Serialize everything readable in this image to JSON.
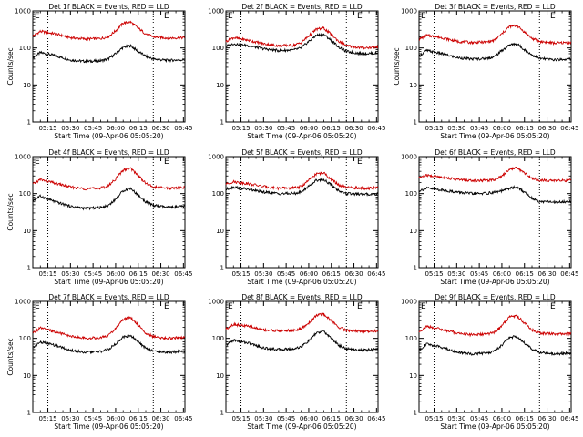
{
  "figure": {
    "panels": [
      {
        "title": "Det 1f BLACK = Events, RED = LLD",
        "corner_label_left": "E",
        "corner_label_right": "E",
        "xlabel": "Start Time (09-Apr-06 05:05:20)",
        "ylabel": "Counts/sec"
      },
      {
        "title": "Det 2f BLACK = Events, RED = LLD",
        "corner_label_left": "E",
        "corner_label_right": "E",
        "xlabel": "Start Time (09-Apr-06 05:05:20)",
        "ylabel": ""
      },
      {
        "title": "Det 3f BLACK = Events, RED = LLD",
        "corner_label_left": "E",
        "corner_label_right": "E",
        "xlabel": "Start Time (09-Apr-06 05:05:20)",
        "ylabel": "Counts/sec"
      },
      {
        "title": "Det 4f BLACK = Events, RED = LLD",
        "corner_label_left": "E",
        "corner_label_right": "E",
        "xlabel": "Start Time (09-Apr-06 05:05:20)",
        "ylabel": "Counts/sec"
      },
      {
        "title": "Det 5f BLACK = Events, RED = LLD",
        "corner_label_left": "",
        "corner_label_right": "E",
        "xlabel": "Start Time (09-Apr-06 05:05:20)",
        "ylabel": ""
      },
      {
        "title": "Det 6f BLACK = Events, RED = LLD",
        "corner_label_left": "",
        "corner_label_right": "",
        "xlabel": "Start Time (09-Apr-06 05:05:20)",
        "ylabel": ""
      },
      {
        "title": "Det 7f BLACK = Events, RED = LLD",
        "corner_label_left": "E",
        "corner_label_right": "E",
        "xlabel": "Start Time (09-Apr-06 05:05:20)",
        "ylabel": "Counts/sec"
      },
      {
        "title": "Det 8f BLACK = Events, RED = LLD",
        "corner_label_left": "E",
        "corner_label_right": "E",
        "xlabel": "Start Time (09-Apr-06 05:05:20)",
        "ylabel": ""
      },
      {
        "title": "Det 9f BLACK = Events, RED = LLD",
        "corner_label_left": "E",
        "corner_label_right": "E",
        "xlabel": "Start Time (09-Apr-06 05:05:20)",
        "ylabel": ""
      }
    ]
  },
  "chart_data": [
    {
      "type": "line",
      "title": "Det 1f BLACK = Events, RED = LLD",
      "xlabel": "Start Time (09-Apr-06 05:05:20)",
      "ylabel": "Counts/sec",
      "y_scale": "log",
      "ylim": [
        1,
        1000
      ],
      "y_ticks": [
        "1",
        "10",
        "100",
        "1000"
      ],
      "x_ticks": [
        "05:15",
        "05:30",
        "05:45",
        "06:00",
        "06:15",
        "06:30",
        "06:45"
      ],
      "xlim": [
        "05:05",
        "06:46"
      ],
      "vlines": [
        "05:15",
        "06:25"
      ],
      "series": [
        {
          "color": "#000000",
          "x": [
            "05:05",
            "05:10",
            "05:20",
            "05:30",
            "05:40",
            "05:50",
            "05:55",
            "06:00",
            "06:05",
            "06:10",
            "06:15",
            "06:20",
            "06:25",
            "06:35",
            "06:45"
          ],
          "values": [
            55,
            75,
            62,
            47,
            43,
            45,
            50,
            70,
            105,
            115,
            80,
            60,
            50,
            46,
            48
          ]
        },
        {
          "color": "#cc0000",
          "x": [
            "05:05",
            "05:10",
            "05:20",
            "05:30",
            "05:40",
            "05:50",
            "05:55",
            "06:00",
            "06:05",
            "06:10",
            "06:15",
            "06:20",
            "06:25",
            "06:35",
            "06:45"
          ],
          "values": [
            210,
            280,
            240,
            190,
            175,
            180,
            200,
            290,
            470,
            500,
            340,
            240,
            200,
            185,
            190
          ]
        }
      ]
    },
    {
      "type": "line",
      "title": "Det 2f BLACK = Events, RED = LLD",
      "xlabel": "Start Time (09-Apr-06 05:05:20)",
      "ylabel": "",
      "y_scale": "log",
      "ylim": [
        1,
        1000
      ],
      "y_ticks": [
        "1",
        "10",
        "100",
        "1000"
      ],
      "x_ticks": [
        "05:15",
        "05:30",
        "05:45",
        "06:00",
        "06:15",
        "06:30",
        "06:45"
      ],
      "xlim": [
        "05:05",
        "06:46"
      ],
      "vlines": [
        "05:15",
        "06:25"
      ],
      "series": [
        {
          "color": "#000000",
          "x": [
            "05:05",
            "05:10",
            "05:20",
            "05:30",
            "05:40",
            "05:50",
            "05:55",
            "06:00",
            "06:05",
            "06:10",
            "06:15",
            "06:20",
            "06:25",
            "06:35",
            "06:45"
          ],
          "values": [
            110,
            130,
            115,
            95,
            85,
            88,
            100,
            150,
            220,
            230,
            160,
            105,
            80,
            70,
            72
          ]
        },
        {
          "color": "#cc0000",
          "x": [
            "05:05",
            "05:10",
            "05:20",
            "05:30",
            "05:40",
            "05:50",
            "05:55",
            "06:00",
            "06:05",
            "06:10",
            "06:15",
            "06:20",
            "06:25",
            "06:35",
            "06:45"
          ],
          "values": [
            150,
            190,
            160,
            130,
            115,
            118,
            140,
            210,
            320,
            340,
            230,
            150,
            115,
            100,
            105
          ]
        }
      ]
    },
    {
      "type": "line",
      "title": "Det 3f BLACK = Events, RED = LLD",
      "xlabel": "Start Time (09-Apr-06 05:05:20)",
      "ylabel": "Counts/sec",
      "y_scale": "log",
      "ylim": [
        1,
        1000
      ],
      "y_ticks": [
        "1",
        "10",
        "100",
        "1000"
      ],
      "x_ticks": [
        "05:15",
        "05:30",
        "05:45",
        "06:00",
        "06:15",
        "06:30",
        "06:45"
      ],
      "xlim": [
        "05:05",
        "06:46"
      ],
      "vlines": [
        "05:15",
        "06:25"
      ],
      "series": [
        {
          "color": "#000000",
          "x": [
            "05:05",
            "05:10",
            "05:20",
            "05:30",
            "05:40",
            "05:50",
            "05:55",
            "06:00",
            "06:05",
            "06:10",
            "06:15",
            "06:20",
            "06:25",
            "06:35",
            "06:45"
          ],
          "values": [
            60,
            85,
            70,
            55,
            50,
            52,
            58,
            85,
            120,
            130,
            90,
            65,
            52,
            48,
            50
          ]
        },
        {
          "color": "#cc0000",
          "x": [
            "05:05",
            "05:10",
            "05:20",
            "05:30",
            "05:40",
            "05:50",
            "05:55",
            "06:00",
            "06:05",
            "06:10",
            "06:15",
            "06:20",
            "06:25",
            "06:35",
            "06:45"
          ],
          "values": [
            170,
            220,
            190,
            150,
            140,
            145,
            160,
            240,
            380,
            400,
            270,
            180,
            150,
            135,
            140
          ]
        }
      ]
    },
    {
      "type": "line",
      "title": "Det 4f BLACK = Events, RED = LLD",
      "xlabel": "Start Time (09-Apr-06 05:05:20)",
      "ylabel": "Counts/sec",
      "y_scale": "log",
      "ylim": [
        1,
        1000
      ],
      "y_ticks": [
        "1",
        "10",
        "100",
        "1000"
      ],
      "x_ticks": [
        "05:15",
        "05:30",
        "05:45",
        "06:00",
        "06:15",
        "06:30",
        "06:45"
      ],
      "xlim": [
        "05:05",
        "06:46"
      ],
      "vlines": [
        "05:15",
        "06:25"
      ],
      "series": [
        {
          "color": "#000000",
          "x": [
            "05:05",
            "05:10",
            "05:20",
            "05:30",
            "05:40",
            "05:50",
            "05:55",
            "06:00",
            "06:05",
            "06:10",
            "06:15",
            "06:20",
            "06:25",
            "06:35",
            "06:45"
          ],
          "values": [
            65,
            85,
            60,
            45,
            40,
            42,
            48,
            70,
            120,
            140,
            90,
            60,
            48,
            42,
            45
          ]
        },
        {
          "color": "#cc0000",
          "x": [
            "05:05",
            "05:10",
            "05:20",
            "05:30",
            "05:40",
            "05:50",
            "05:55",
            "06:00",
            "06:05",
            "06:10",
            "06:15",
            "06:20",
            "06:25",
            "06:35",
            "06:45"
          ],
          "values": [
            180,
            240,
            190,
            150,
            135,
            140,
            160,
            250,
            430,
            480,
            310,
            190,
            150,
            140,
            145
          ]
        }
      ]
    },
    {
      "type": "line",
      "title": "Det 5f BLACK = Events, RED = LLD",
      "xlabel": "Start Time (09-Apr-06 05:05:20)",
      "ylabel": "",
      "y_scale": "log",
      "ylim": [
        1,
        1000
      ],
      "y_ticks": [
        "1",
        "10",
        "100",
        "1000"
      ],
      "x_ticks": [
        "05:15",
        "05:30",
        "05:45",
        "06:00",
        "06:15",
        "06:30",
        "06:45"
      ],
      "xlim": [
        "05:05",
        "06:46"
      ],
      "vlines": [
        "05:15",
        "06:25"
      ],
      "series": [
        {
          "color": "#000000",
          "x": [
            "05:05",
            "05:10",
            "05:20",
            "05:30",
            "05:40",
            "05:50",
            "05:55",
            "06:00",
            "06:05",
            "06:10",
            "06:15",
            "06:20",
            "06:25",
            "06:35",
            "06:45"
          ],
          "values": [
            130,
            150,
            130,
            110,
            100,
            100,
            110,
            160,
            230,
            240,
            170,
            120,
            100,
            95,
            98
          ]
        },
        {
          "color": "#cc0000",
          "x": [
            "05:05",
            "05:10",
            "05:20",
            "05:30",
            "05:40",
            "05:50",
            "05:55",
            "06:00",
            "06:05",
            "06:10",
            "06:15",
            "06:20",
            "06:25",
            "06:35",
            "06:45"
          ],
          "values": [
            180,
            210,
            185,
            155,
            140,
            142,
            155,
            230,
            340,
            360,
            240,
            170,
            145,
            140,
            142
          ]
        }
      ]
    },
    {
      "type": "line",
      "title": "Det 6f BLACK = Events, RED = LLD",
      "xlabel": "Start Time (09-Apr-06 05:05:20)",
      "ylabel": "",
      "y_scale": "log",
      "ylim": [
        1,
        1000
      ],
      "y_ticks": [
        "1",
        "10",
        "100",
        "1000"
      ],
      "x_ticks": [
        "05:15",
        "05:30",
        "05:45",
        "06:00",
        "06:15",
        "06:30",
        "06:45"
      ],
      "xlim": [
        "05:05",
        "06:46"
      ],
      "vlines": [
        "05:15",
        "06:25"
      ],
      "series": [
        {
          "color": "#000000",
          "x": [
            "05:05",
            "05:10",
            "05:20",
            "05:30",
            "05:40",
            "05:50",
            "05:55",
            "06:00",
            "06:05",
            "06:10",
            "06:15",
            "06:20",
            "06:25",
            "06:35",
            "06:45"
          ],
          "values": [
            120,
            140,
            125,
            110,
            100,
            102,
            108,
            118,
            140,
            150,
            110,
            75,
            62,
            58,
            60
          ]
        },
        {
          "color": "#cc0000",
          "x": [
            "05:05",
            "05:10",
            "05:20",
            "05:30",
            "05:40",
            "05:50",
            "05:55",
            "06:00",
            "06:05",
            "06:10",
            "06:15",
            "06:20",
            "06:25",
            "06:35",
            "06:45"
          ],
          "values": [
            270,
            310,
            280,
            240,
            225,
            228,
            240,
            300,
            460,
            500,
            360,
            260,
            230,
            225,
            228
          ]
        }
      ]
    },
    {
      "type": "line",
      "title": "Det 7f BLACK = Events, RED = LLD",
      "xlabel": "Start Time (09-Apr-06 05:05:20)",
      "ylabel": "Counts/sec",
      "y_scale": "log",
      "ylim": [
        1,
        1000
      ],
      "y_ticks": [
        "1",
        "10",
        "100",
        "1000"
      ],
      "x_ticks": [
        "05:15",
        "05:30",
        "05:45",
        "06:00",
        "06:15",
        "06:30",
        "06:45"
      ],
      "xlim": [
        "05:05",
        "06:46"
      ],
      "vlines": [
        "05:15",
        "06:25"
      ],
      "series": [
        {
          "color": "#000000",
          "x": [
            "05:05",
            "05:10",
            "05:20",
            "05:30",
            "05:40",
            "05:50",
            "05:55",
            "06:00",
            "06:05",
            "06:10",
            "06:15",
            "06:20",
            "06:25",
            "06:35",
            "06:45"
          ],
          "values": [
            55,
            80,
            65,
            48,
            42,
            44,
            50,
            70,
            110,
            120,
            80,
            55,
            45,
            42,
            45
          ]
        },
        {
          "color": "#cc0000",
          "x": [
            "05:05",
            "05:10",
            "05:20",
            "05:30",
            "05:40",
            "05:50",
            "05:55",
            "06:00",
            "06:05",
            "06:10",
            "06:15",
            "06:20",
            "06:25",
            "06:35",
            "06:45"
          ],
          "values": [
            140,
            190,
            150,
            115,
            100,
            105,
            120,
            180,
            330,
            360,
            230,
            140,
            110,
            100,
            105
          ]
        }
      ]
    },
    {
      "type": "line",
      "title": "Det 8f BLACK = Events, RED = LLD",
      "xlabel": "Start Time (09-Apr-06 05:05:20)",
      "ylabel": "",
      "y_scale": "log",
      "ylim": [
        1,
        1000
      ],
      "y_ticks": [
        "1",
        "10",
        "100",
        "1000"
      ],
      "x_ticks": [
        "05:15",
        "05:30",
        "05:45",
        "06:00",
        "06:15",
        "06:30",
        "06:45"
      ],
      "xlim": [
        "05:05",
        "06:46"
      ],
      "vlines": [
        "05:15",
        "06:25"
      ],
      "series": [
        {
          "color": "#000000",
          "x": [
            "05:05",
            "05:10",
            "05:20",
            "05:30",
            "05:40",
            "05:50",
            "05:55",
            "06:00",
            "06:05",
            "06:10",
            "06:15",
            "06:20",
            "06:25",
            "06:35",
            "06:45"
          ],
          "values": [
            65,
            90,
            75,
            55,
            50,
            52,
            60,
            85,
            140,
            155,
            100,
            65,
            52,
            48,
            50
          ]
        },
        {
          "color": "#cc0000",
          "x": [
            "05:05",
            "05:10",
            "05:20",
            "05:30",
            "05:40",
            "05:50",
            "05:55",
            "06:00",
            "06:05",
            "06:10",
            "06:15",
            "06:20",
            "06:25",
            "06:35",
            "06:45"
          ],
          "values": [
            180,
            240,
            210,
            170,
            160,
            165,
            180,
            260,
            420,
            450,
            300,
            200,
            165,
            155,
            160
          ]
        }
      ]
    },
    {
      "type": "line",
      "title": "Det 9f BLACK = Events, RED = LLD",
      "xlabel": "Start Time (09-Apr-06 05:05:20)",
      "ylabel": "",
      "y_scale": "log",
      "ylim": [
        1,
        1000
      ],
      "y_ticks": [
        "1",
        "10",
        "100",
        "1000"
      ],
      "x_ticks": [
        "05:15",
        "05:30",
        "05:45",
        "06:00",
        "06:15",
        "06:30",
        "06:45"
      ],
      "xlim": [
        "05:05",
        "06:46"
      ],
      "vlines": [
        "05:15",
        "06:25"
      ],
      "series": [
        {
          "color": "#000000",
          "x": [
            "05:05",
            "05:10",
            "05:20",
            "05:30",
            "05:40",
            "05:50",
            "05:55",
            "06:00",
            "06:05",
            "06:10",
            "06:15",
            "06:20",
            "06:25",
            "06:35",
            "06:45"
          ],
          "values": [
            48,
            70,
            58,
            42,
            38,
            40,
            45,
            65,
            105,
            115,
            75,
            50,
            42,
            38,
            40
          ]
        },
        {
          "color": "#cc0000",
          "x": [
            "05:05",
            "05:10",
            "05:20",
            "05:30",
            "05:40",
            "05:50",
            "05:55",
            "06:00",
            "06:05",
            "06:10",
            "06:15",
            "06:20",
            "06:25",
            "06:35",
            "06:45"
          ],
          "values": [
            150,
            210,
            175,
            140,
            125,
            130,
            145,
            220,
            380,
            410,
            260,
            170,
            140,
            130,
            135
          ]
        }
      ]
    }
  ]
}
